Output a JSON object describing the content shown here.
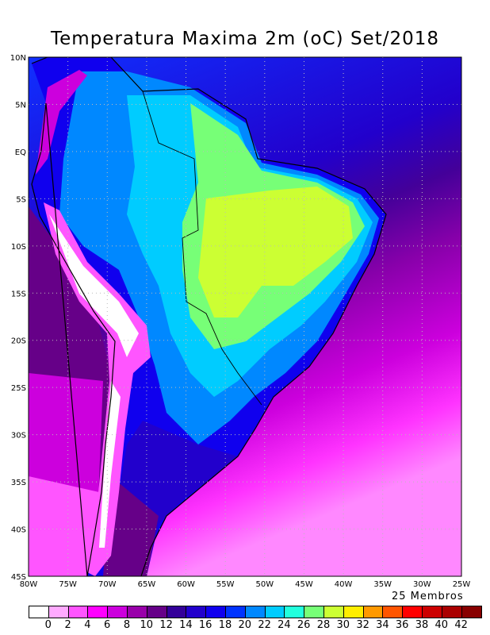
{
  "title": "Temperatura Maxima 2m (oC) Set/2018",
  "members_label": "25 Membros",
  "lon_labels": [
    "80W",
    "75W",
    "70W",
    "65W",
    "60W",
    "55W",
    "50W",
    "45W",
    "40W",
    "35W",
    "30W",
    "25W"
  ],
  "lat_labels": [
    "10N",
    "5N",
    "EQ",
    "5S",
    "10S",
    "15S",
    "20S",
    "25S",
    "30S",
    "35S",
    "40S",
    "45S"
  ],
  "colorbar": {
    "labels": [
      "0",
      "2",
      "4",
      "6",
      "8",
      "10",
      "12",
      "14",
      "16",
      "18",
      "20",
      "22",
      "24",
      "26",
      "28",
      "30",
      "32",
      "34",
      "36",
      "38",
      "40",
      "42"
    ],
    "colors": [
      "#ffffff",
      "#ffaaff",
      "#ff55ff",
      "#ff00ff",
      "#cc00dd",
      "#9900aa",
      "#660088",
      "#330099",
      "#2200cc",
      "#1000ee",
      "#0033ff",
      "#0088ff",
      "#00ccff",
      "#22ffdd",
      "#77ff77",
      "#ccff33",
      "#ffee00",
      "#ff9900",
      "#ff5500",
      "#ff0000",
      "#cc0000",
      "#aa0000",
      "#880000"
    ]
  }
}
